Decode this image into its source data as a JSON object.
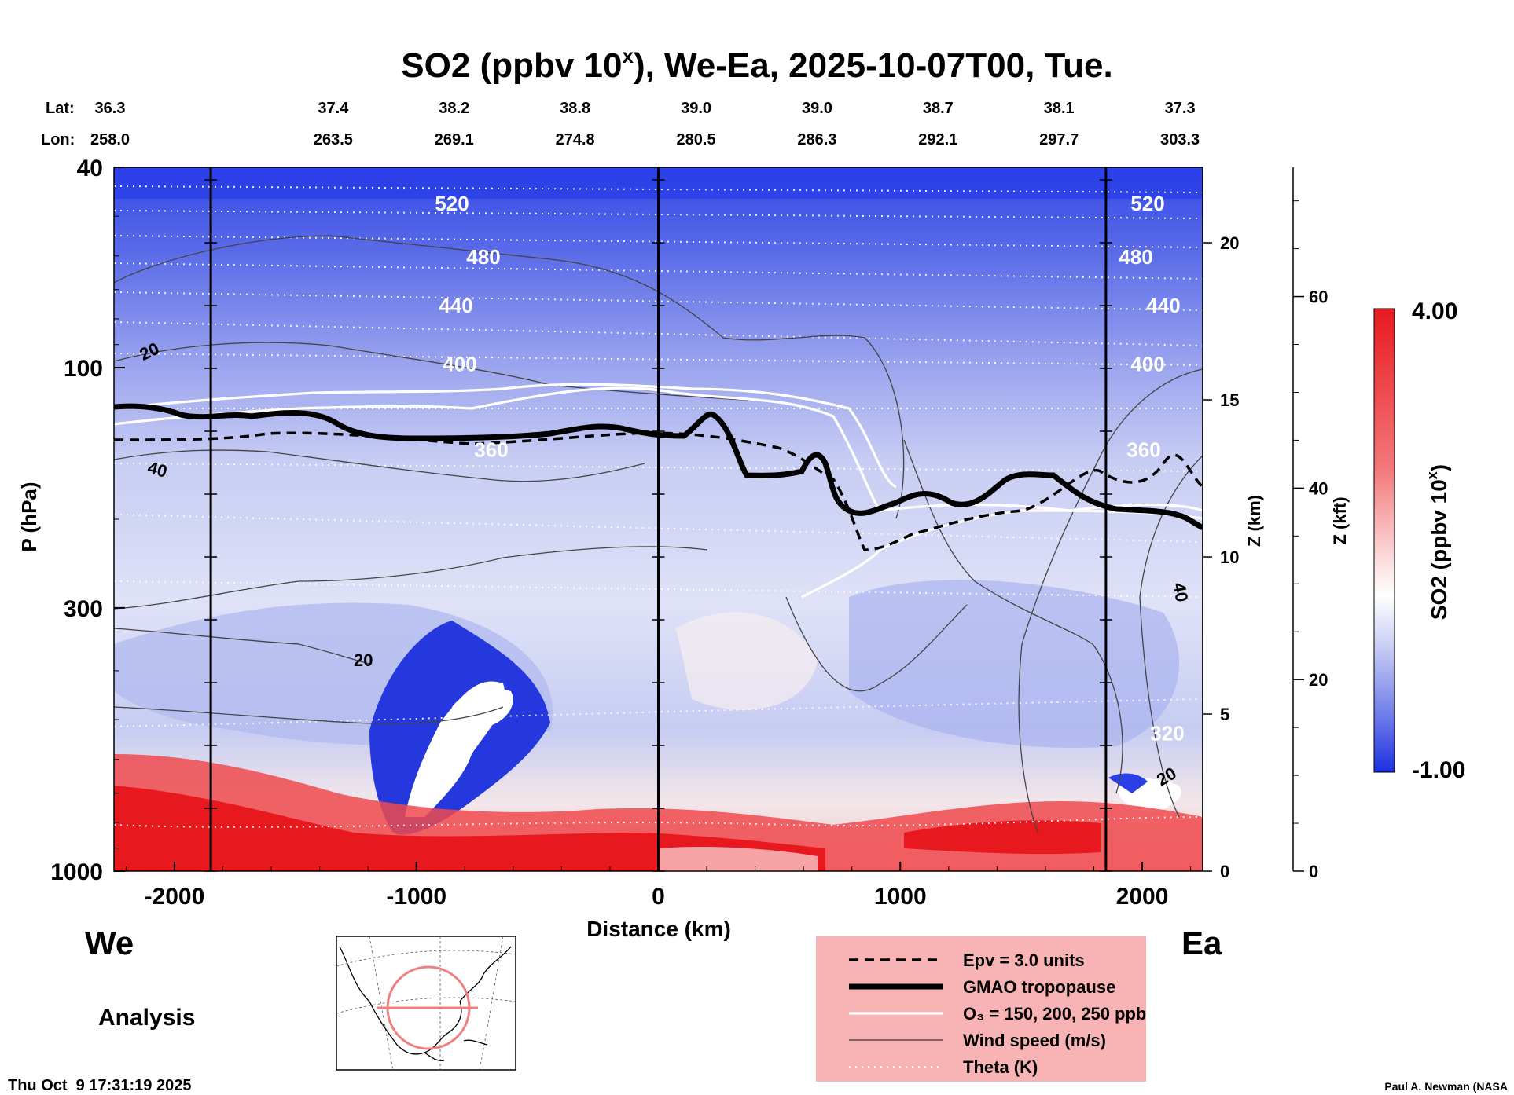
{
  "chart_data": {
    "type": "heatmap",
    "title": "SO2 (ppbv 10",
    "title_sup": "x",
    "title_rest": "), We-Ea, 2025-10-07T00, Tue.",
    "xlabel": "Distance (km)",
    "ylabel": "P (hPa)",
    "z_km_label": "Z (km)",
    "z_kft_label": "Z (kft)",
    "xlim": [
      -2250,
      2250
    ],
    "ylim_hpa": [
      1000,
      40
    ],
    "x_ticks": [
      -2000,
      -1000,
      0,
      1000,
      2000
    ],
    "x_tick_labels": [
      "-2000",
      "-1000",
      "0",
      "1000",
      "2000"
    ],
    "p_ticks": [
      1000,
      300,
      100,
      40
    ],
    "p_tick_labels": [
      "1000",
      "300",
      "100",
      "40"
    ],
    "z_km_ticks": [
      0,
      5,
      10,
      15,
      20
    ],
    "z_km_tick_labels": [
      "0",
      "5",
      "10",
      "15",
      "20"
    ],
    "z_kft_ticks": [
      0,
      20,
      40,
      60
    ],
    "z_kft_tick_labels": [
      "0",
      "20",
      "40",
      "60"
    ],
    "lat_label": "Lat:",
    "lon_label": "Lon:",
    "latlon_x": [
      -2250,
      -1750,
      -1250,
      -750,
      -250,
      250,
      750,
      1250,
      1750
    ],
    "lats": [
      "36.3",
      "37.4",
      "38.2",
      "38.8",
      "39.0",
      "39.0",
      "38.7",
      "38.1",
      "37.3"
    ],
    "lons": [
      "258.0",
      "263.5",
      "269.1",
      "274.8",
      "280.5",
      "286.3",
      "292.1",
      "297.7",
      "303.3"
    ],
    "colorbar": {
      "label_main": "SO2 (ppbv 10",
      "label_sup": "x",
      "label_end": ")",
      "max_label": "4.00",
      "min_label": "-1.00",
      "vmin": -1.0,
      "vmax": 4.0
    },
    "theta_contours": [
      {
        "label": "520",
        "p": 47
      },
      {
        "label": "480",
        "p": 60
      },
      {
        "label": "440",
        "p": 75
      },
      {
        "label": "400",
        "p": 98
      },
      {
        "label": "360",
        "p": 145
      },
      {
        "label": "320",
        "p": 530
      }
    ],
    "wind_labels": [
      "20",
      "40",
      "20",
      "40",
      "20"
    ],
    "vertical_markers_km": [
      -1850,
      0,
      1850
    ],
    "west_label": "We",
    "east_label": "Ea",
    "analysis_label": "Analysis",
    "legend": [
      {
        "label": "Epv = 3.0 units",
        "style": "dashed"
      },
      {
        "label": "GMAO tropopause",
        "style": "thick"
      },
      {
        "label": "O₃ = 150, 200, 250 ppb",
        "style": "white"
      },
      {
        "label": "Wind speed (m/s)",
        "style": "thin"
      },
      {
        "label": "Theta (K)",
        "style": "dotted"
      }
    ]
  },
  "footer": {
    "timestamp": "Thu Oct  9 17:31:19 2025",
    "credit": "Paul A. Newman (NASA"
  },
  "colors": {
    "high": "#e8191e",
    "low": "#1c2fe0",
    "legend_bg": "#f8b4b4"
  }
}
